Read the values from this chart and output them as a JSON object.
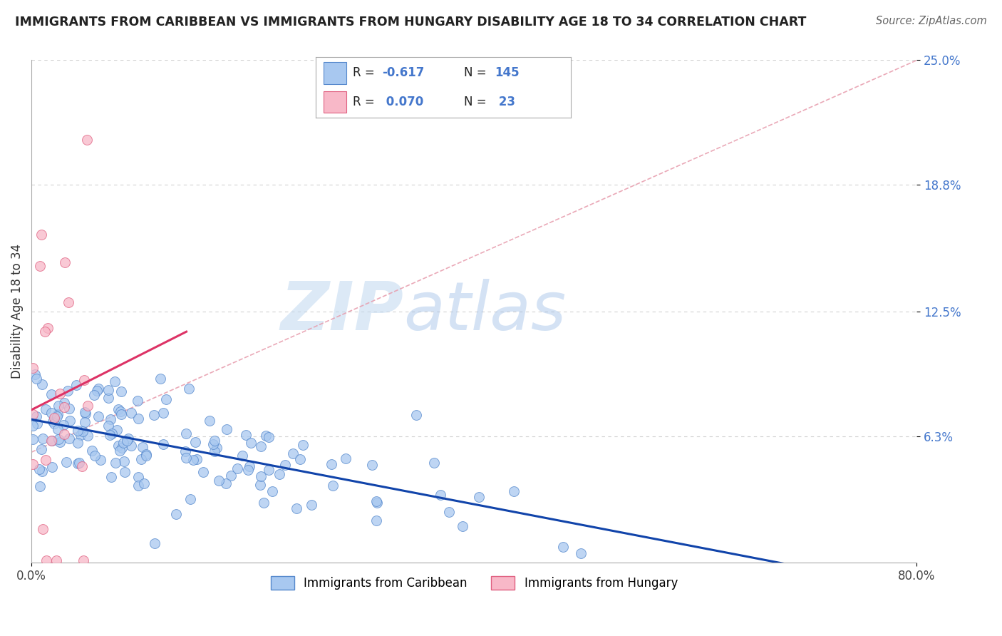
{
  "title": "IMMIGRANTS FROM CARIBBEAN VS IMMIGRANTS FROM HUNGARY DISABILITY AGE 18 TO 34 CORRELATION CHART",
  "source": "Source: ZipAtlas.com",
  "ylabel": "Disability Age 18 to 34",
  "xlim": [
    0.0,
    0.8
  ],
  "ylim": [
    0.0,
    0.25
  ],
  "ytick_vals": [
    0.063,
    0.125,
    0.188,
    0.25
  ],
  "ytick_labels": [
    "6.3%",
    "12.5%",
    "18.8%",
    "25.0%"
  ],
  "blue_color": "#a8c8f0",
  "blue_edge": "#5588cc",
  "pink_color": "#f8b8c8",
  "pink_edge": "#e06080",
  "blue_line_color": "#1144aa",
  "pink_line_color": "#dd3366",
  "dash_line_color": "#e8a0b0",
  "R_blue": -0.617,
  "N_blue": 145,
  "R_pink": 0.07,
  "N_pink": 23,
  "legend_blue_label": "Immigrants from Caribbean",
  "legend_pink_label": "Immigrants from Hungary",
  "watermark_zip": "ZIP",
  "watermark_atlas": "atlas",
  "background_color": "#ffffff",
  "grid_color": "#cccccc",
  "ytick_color": "#4477cc",
  "title_color": "#222222",
  "source_color": "#666666"
}
